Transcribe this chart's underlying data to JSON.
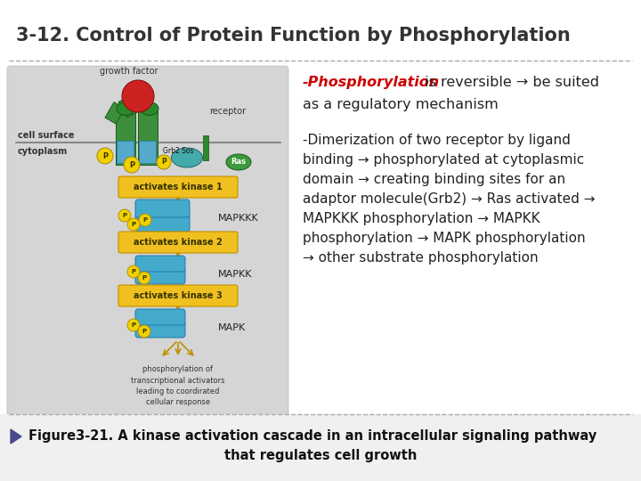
{
  "title": "3-12. Control of Protein Function by Phosphorylation",
  "title_fontsize": 15,
  "title_color": "#333333",
  "bg_color": "#ffffff",
  "phospho_bold": "-Phosphorylation",
  "phospho_bold_color": "#cc0000",
  "phospho_rest": " is reversible → be suited",
  "phospho_line2": "as a regulatory mechanism",
  "text_color": "#222222",
  "bullet_lines": [
    "-Dimerization of two receptor by ligand",
    "binding → phosphorylated at cytoplasmic",
    "domain → creating binding sites for an",
    "adaptor molecule(Grb2) → Ras activated →",
    "MAPKKK phosphorylation → MAPKK",
    "phosphorylation → MAPK phosphorylation",
    "→ other substrate phosphorylation"
  ],
  "figure_caption_line1": "Figure3-21. A kinase activation cascade in an intracellular signaling pathway",
  "figure_caption_line2": "that regulates cell growth",
  "image_bg": "#d8d8d8",
  "green_dark": "#2a7a2a",
  "green_medium": "#3d9a3d",
  "teal": "#3a8fa0",
  "yellow_btn": "#f0c020",
  "red_ball": "#cc2222",
  "yellow_arr": "#e8c000"
}
